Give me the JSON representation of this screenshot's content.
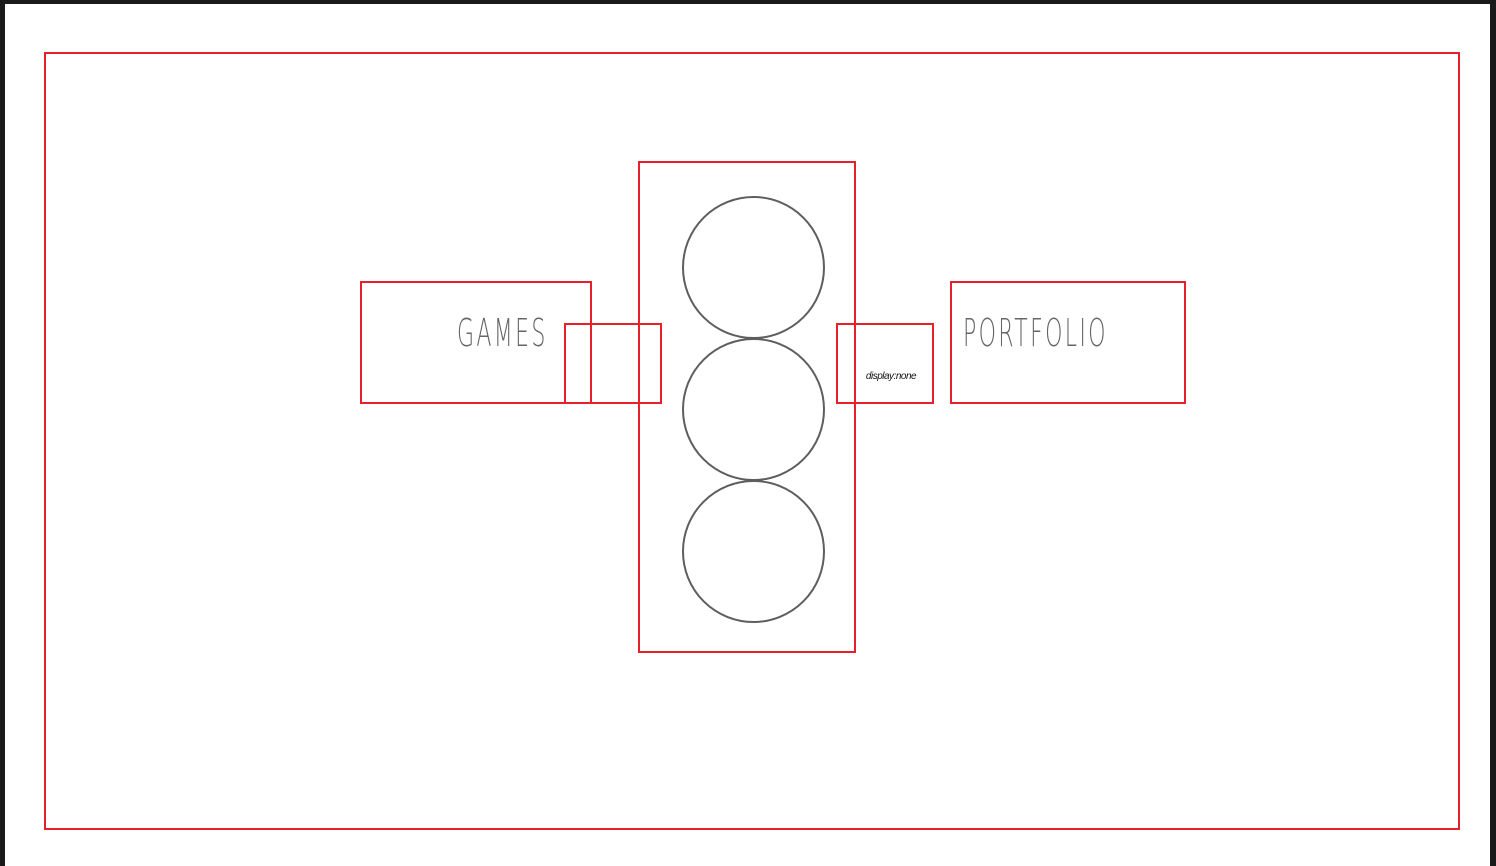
{
  "nav": {
    "games_label": "GAMES",
    "portfolio_label": "PORTFOLIO"
  },
  "annotation": {
    "hidden_note": "display:none"
  },
  "circles": [
    {
      "name": "circle-1"
    },
    {
      "name": "circle-2"
    },
    {
      "name": "circle-3"
    }
  ],
  "colors": {
    "wireframe_red": "#e8202a",
    "text_gray": "#666666",
    "circle_gray": "#5e5e5e",
    "frame_dark": "#1a1a1a"
  }
}
